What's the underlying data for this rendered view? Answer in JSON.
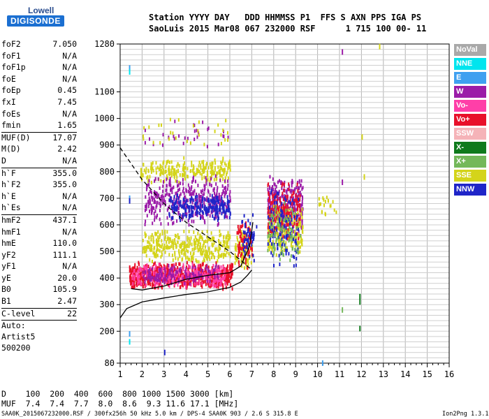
{
  "logo": {
    "line1": "Lowell",
    "line2": "DIGISONDE"
  },
  "header": {
    "line1": "Station YYYY DAY   DDD HHMMSS P1  FFS S AXN PPS IGA PS",
    "line2": "SaoLuis 2015 Mar08 067 232000 RSF      1 715 100 00- 11"
  },
  "params": [
    {
      "label": "foF2",
      "value": "7.050"
    },
    {
      "label": "foF1",
      "value": "N/A"
    },
    {
      "label": "foF1p",
      "value": "N/A"
    },
    {
      "label": "foE",
      "value": "N/A"
    },
    {
      "label": "foEp",
      "value": "0.45"
    },
    {
      "label": "fxI",
      "value": "7.45"
    },
    {
      "label": "foEs",
      "value": "N/A"
    },
    {
      "label": "fmin",
      "value": "1.65"
    },
    {
      "sep": true
    },
    {
      "label": "MUF(D)",
      "value": "17.07"
    },
    {
      "label": "M(D)",
      "value": "2.42"
    },
    {
      "label": "D",
      "value": "N/A"
    },
    {
      "sep": true
    },
    {
      "label": "h`F",
      "value": "355.0"
    },
    {
      "label": "h`F2",
      "value": "355.0"
    },
    {
      "label": "h`E",
      "value": "N/A"
    },
    {
      "label": "h`Es",
      "value": "N/A"
    },
    {
      "sep": true
    },
    {
      "label": "hmF2",
      "value": "437.1"
    },
    {
      "label": "hmF1",
      "value": "N/A"
    },
    {
      "label": "hmE",
      "value": "110.0"
    },
    {
      "label": "yF2",
      "value": "111.1"
    },
    {
      "label": "yF1",
      "value": "N/A"
    },
    {
      "label": "yE",
      "value": "20.0"
    },
    {
      "label": "B0",
      "value": "105.9"
    },
    {
      "label": "B1",
      "value": "2.47"
    },
    {
      "sep": true
    },
    {
      "label": "C-level",
      "value": "22"
    },
    {
      "sep": true
    }
  ],
  "auto_lines": [
    "Auto:",
    "Artist5",
    "500200"
  ],
  "legend": [
    {
      "name": "NoVal",
      "color": "#a9a9a9",
      "text": "#ffffff"
    },
    {
      "name": "NNE",
      "color": "#00e5ee",
      "text": "#ffffff"
    },
    {
      "name": "E",
      "color": "#3fa0f0",
      "text": "#ffffff"
    },
    {
      "name": "W",
      "color": "#9b1ba8",
      "text": "#ffffff"
    },
    {
      "name": "Vo-",
      "color": "#ff3fa8",
      "text": "#ffffff"
    },
    {
      "name": "Vo+",
      "color": "#e8102a",
      "text": "#ffffff"
    },
    {
      "name": "SSW",
      "color": "#f5b3b8",
      "text": "#ffffff"
    },
    {
      "name": "X-",
      "color": "#0f7a1c",
      "text": "#ffffff"
    },
    {
      "name": "X+",
      "color": "#74b85a",
      "text": "#ffffff"
    },
    {
      "name": "SSE",
      "color": "#d4d41a",
      "text": "#ffffff"
    },
    {
      "name": "NNW",
      "color": "#1f25c8",
      "text": "#ffffff"
    }
  ],
  "bottom": {
    "d_line": "D    100  200  400  600  800 1000 1500 3000 [km]",
    "muf_line": "MUF  7.4  7.4  7.7  8.0  8.6  9.3 11.6 17.1 [MHz]"
  },
  "footer": {
    "left": "SAA0K_2015067232000.RSF / 300fx256h 50 kHz 5.0 km / DPS-4 SAA0K 903 / 2.6 S 315.8 E",
    "right": "Ion2Png 1.3.17"
  },
  "chart_data": {
    "type": "scatter",
    "xlim": [
      1,
      16
    ],
    "ylim": [
      80,
      1280
    ],
    "x_ticks": [
      "1",
      "2",
      "3",
      "4",
      "5",
      "6",
      "7",
      "8",
      "9",
      "10",
      "11",
      "12",
      "13",
      "14",
      "15",
      "16"
    ],
    "y_ticks": [
      "80",
      "200",
      "300",
      "400",
      "500",
      "600",
      "700",
      "800",
      "900",
      "1000",
      "1100",
      "1280"
    ],
    "y_tick_values": [
      80,
      200,
      300,
      400,
      500,
      600,
      700,
      800,
      900,
      1000,
      1100,
      1280
    ],
    "grid": true,
    "clusters": [
      {
        "color": "#d4d41a",
        "x": [
          1.9,
          6.0
        ],
        "y": [
          760,
          860
        ],
        "density": 260
      },
      {
        "color": "#9b1ba8",
        "x": [
          2.1,
          6.0
        ],
        "y": [
          600,
          800
        ],
        "density": 380
      },
      {
        "color": "#1f25c8",
        "x": [
          3.2,
          6.0
        ],
        "y": [
          620,
          720
        ],
        "density": 220
      },
      {
        "color": "#d4d41a",
        "x": [
          2.0,
          6.0
        ],
        "y": [
          460,
          590
        ],
        "density": 360
      },
      {
        "color": "#e8102a",
        "x": [
          1.4,
          6.1
        ],
        "y": [
          360,
          470
        ],
        "density": 650
      },
      {
        "color": "#ff3fa8",
        "x": [
          1.5,
          5.8
        ],
        "y": [
          370,
          460
        ],
        "density": 260
      },
      {
        "color": "#9b1ba8",
        "x": [
          2.0,
          5.5
        ],
        "y": [
          380,
          460
        ],
        "density": 140
      },
      {
        "color": "#d4d41a",
        "x": [
          6.2,
          7.0
        ],
        "y": [
          420,
          600
        ],
        "density": 90
      },
      {
        "color": "#e8102a",
        "x": [
          6.3,
          7.0
        ],
        "y": [
          440,
          640
        ],
        "density": 70
      },
      {
        "color": "#1f25c8",
        "x": [
          6.5,
          7.2
        ],
        "y": [
          440,
          660
        ],
        "density": 50
      },
      {
        "color": "#9b1ba8",
        "x": [
          7.7,
          9.3
        ],
        "y": [
          560,
          790
        ],
        "density": 300
      },
      {
        "color": "#d4d41a",
        "x": [
          7.7,
          9.3
        ],
        "y": [
          480,
          690
        ],
        "density": 240
      },
      {
        "color": "#e8102a",
        "x": [
          7.7,
          9.2
        ],
        "y": [
          540,
          780
        ],
        "density": 160
      },
      {
        "color": "#1f25c8",
        "x": [
          7.7,
          9.1
        ],
        "y": [
          420,
          760
        ],
        "density": 120
      },
      {
        "color": "#74b85a",
        "x": [
          7.7,
          9.2
        ],
        "y": [
          440,
          720
        ],
        "density": 80
      },
      {
        "color": "#d4d41a",
        "x": [
          10,
          10.9
        ],
        "y": [
          640,
          720
        ],
        "density": 20
      },
      {
        "color": "#9b1ba8",
        "x": [
          2.0,
          6.0
        ],
        "y": [
          880,
          1010
        ],
        "density": 30
      },
      {
        "color": "#d4d41a",
        "x": [
          2.0,
          6.0
        ],
        "y": [
          880,
          1010
        ],
        "density": 30
      }
    ],
    "isolated": [
      {
        "x": 1.4,
        "y": 1190,
        "color": "#3fa0f0"
      },
      {
        "x": 1.4,
        "y": 1175,
        "color": "#00e5ee"
      },
      {
        "x": 1.4,
        "y": 700,
        "color": "#3fa0f0"
      },
      {
        "x": 1.4,
        "y": 690,
        "color": "#1f25c8"
      },
      {
        "x": 1.4,
        "y": 190,
        "color": "#3fa0f0"
      },
      {
        "x": 1.4,
        "y": 160,
        "color": "#00e5ee"
      },
      {
        "x": 3.0,
        "y": 120,
        "color": "#1f25c8"
      },
      {
        "x": 10.2,
        "y": 80,
        "color": "#3fa0f0"
      },
      {
        "x": 11.1,
        "y": 1250,
        "color": "#9b1ba8"
      },
      {
        "x": 11.1,
        "y": 760,
        "color": "#9b1ba8"
      },
      {
        "x": 11.1,
        "y": 280,
        "color": "#74b85a"
      },
      {
        "x": 11.9,
        "y": 330,
        "color": "#0f7a1c"
      },
      {
        "x": 11.9,
        "y": 310,
        "color": "#0f7a1c"
      },
      {
        "x": 11.9,
        "y": 210,
        "color": "#0f7a1c"
      },
      {
        "x": 12.0,
        "y": 930,
        "color": "#d4d41a"
      },
      {
        "x": 12.1,
        "y": 780,
        "color": "#d4d41a"
      },
      {
        "x": 12.8,
        "y": 1270,
        "color": "#d4d41a"
      }
    ],
    "profile_solid": [
      [
        1,
        250
      ],
      [
        1.3,
        285
      ],
      [
        2,
        310
      ],
      [
        3,
        325
      ],
      [
        4,
        338
      ],
      [
        5,
        348
      ],
      [
        6,
        365
      ],
      [
        6.5,
        385
      ],
      [
        6.8,
        410
      ],
      [
        7.0,
        430
      ]
    ],
    "trace_solid": [
      [
        1.5,
        360
      ],
      [
        2,
        355
      ],
      [
        3,
        370
      ],
      [
        4,
        395
      ],
      [
        5,
        410
      ],
      [
        6,
        420
      ],
      [
        6.5,
        445
      ],
      [
        6.9,
        520
      ],
      [
        7.05,
        610
      ]
    ],
    "curve_dashed": [
      [
        1,
        890
      ],
      [
        1.5,
        830
      ],
      [
        2,
        770
      ],
      [
        3,
        680
      ],
      [
        4,
        610
      ],
      [
        5,
        555
      ],
      [
        6,
        500
      ],
      [
        6.6,
        460
      ],
      [
        7.0,
        430
      ]
    ]
  }
}
